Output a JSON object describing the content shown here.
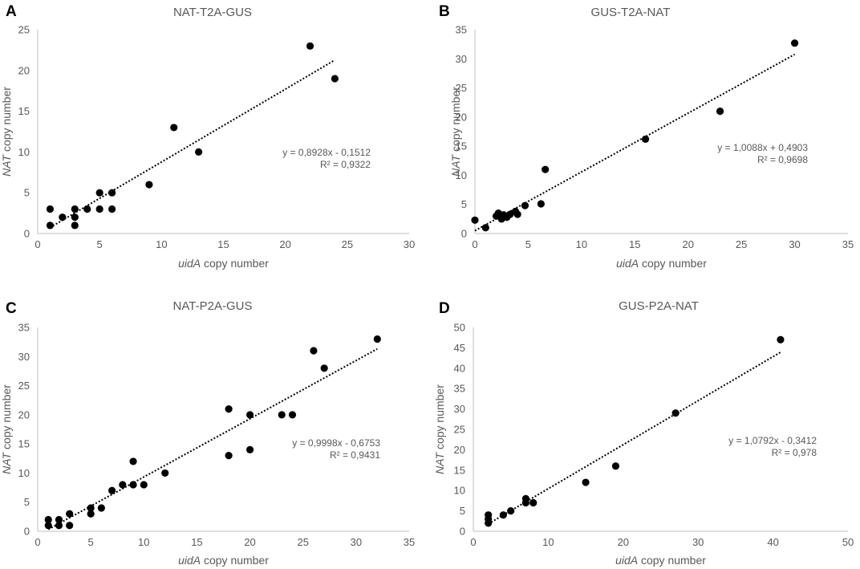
{
  "chart_data": [
    {
      "type": "scatter",
      "panel_label": "A",
      "title": "NAT-T2A-GUS",
      "xlabel_italic": "uidA",
      "xlabel_rest": " copy number",
      "ylabel_italic": "NAT",
      "ylabel_rest": " copy number",
      "xlim": [
        0,
        30
      ],
      "ylim": [
        0,
        25
      ],
      "xticks": [
        0,
        5,
        10,
        15,
        20,
        25,
        30
      ],
      "yticks": [
        0,
        5,
        10,
        15,
        20,
        25
      ],
      "points": [
        [
          1,
          3
        ],
        [
          1,
          1
        ],
        [
          2,
          2
        ],
        [
          3,
          3
        ],
        [
          3,
          2
        ],
        [
          3,
          1
        ],
        [
          4,
          3
        ],
        [
          5,
          5
        ],
        [
          5,
          3
        ],
        [
          6,
          5
        ],
        [
          6,
          3
        ],
        [
          9,
          6
        ],
        [
          11,
          13
        ],
        [
          13,
          10
        ],
        [
          22,
          23
        ],
        [
          24,
          19
        ]
      ],
      "trendline": {
        "slope": 0.8928,
        "intercept": -0.1512,
        "x_range": [
          1,
          24
        ]
      },
      "equation": "y = 0,8928x - 0,1512",
      "r2": "R² = 0,9322"
    },
    {
      "type": "scatter",
      "panel_label": "B",
      "title": "GUS-T2A-NAT",
      "xlabel_italic": "uidA",
      "xlabel_rest": " copy number",
      "ylabel_italic": "NAT",
      "ylabel_rest": " copy number",
      "xlim": [
        0,
        35
      ],
      "ylim": [
        0,
        35
      ],
      "xticks": [
        0,
        5,
        10,
        15,
        20,
        25,
        30,
        35
      ],
      "yticks": [
        0,
        5,
        10,
        15,
        20,
        25,
        30,
        35
      ],
      "points": [
        [
          0,
          2.3
        ],
        [
          1,
          1
        ],
        [
          2,
          3
        ],
        [
          2.2,
          3.5
        ],
        [
          2.5,
          2.5
        ],
        [
          2.7,
          3.2
        ],
        [
          3,
          2.8
        ],
        [
          3.3,
          3.3
        ],
        [
          3.8,
          3.8
        ],
        [
          4,
          3.3
        ],
        [
          4.7,
          4.8
        ],
        [
          6.2,
          5.1
        ],
        [
          6.6,
          11
        ],
        [
          16,
          16.2
        ],
        [
          23,
          21
        ],
        [
          30,
          32.7
        ]
      ],
      "trendline": {
        "slope": 1.0088,
        "intercept": 0.4903,
        "x_range": [
          0,
          30
        ]
      },
      "equation": "y = 1,0088x + 0,4903",
      "r2": "R² = 0,9698"
    },
    {
      "type": "scatter",
      "panel_label": "C",
      "title": "NAT-P2A-GUS",
      "xlabel_italic": "uidA",
      "xlabel_rest": " copy number",
      "ylabel_italic": "NAT",
      "ylabel_rest": " copy number",
      "xlim": [
        0,
        35
      ],
      "ylim": [
        0,
        35
      ],
      "xticks": [
        0,
        5,
        10,
        15,
        20,
        25,
        30,
        35
      ],
      "yticks": [
        0,
        5,
        10,
        15,
        20,
        25,
        30,
        35
      ],
      "points": [
        [
          1,
          2
        ],
        [
          1,
          1
        ],
        [
          2,
          2
        ],
        [
          2,
          1
        ],
        [
          3,
          3
        ],
        [
          3,
          1
        ],
        [
          5,
          4
        ],
        [
          5,
          3
        ],
        [
          6,
          4
        ],
        [
          7,
          7
        ],
        [
          8,
          8
        ],
        [
          9,
          12
        ],
        [
          9,
          8
        ],
        [
          10,
          8
        ],
        [
          12,
          10
        ],
        [
          18,
          21
        ],
        [
          18,
          13
        ],
        [
          20,
          20
        ],
        [
          20,
          14
        ],
        [
          23,
          20
        ],
        [
          24,
          20
        ],
        [
          26,
          31
        ],
        [
          27,
          28
        ],
        [
          32,
          33
        ]
      ],
      "trendline": {
        "slope": 0.9998,
        "intercept": -0.6753,
        "x_range": [
          1,
          32
        ]
      },
      "equation": "y = 0,9998x - 0,6753",
      "r2": "R² = 0,9431"
    },
    {
      "type": "scatter",
      "panel_label": "D",
      "title": "GUS-P2A-NAT",
      "xlabel_italic": "uidA",
      "xlabel_rest": " copy number",
      "ylabel_italic": "NAT",
      "ylabel_rest": " copy number",
      "xlim": [
        0,
        50
      ],
      "ylim": [
        0,
        50
      ],
      "xticks": [
        0,
        10,
        20,
        30,
        40,
        50
      ],
      "yticks": [
        0,
        5,
        10,
        15,
        20,
        25,
        30,
        35,
        40,
        45,
        50
      ],
      "points": [
        [
          2,
          4
        ],
        [
          2,
          3
        ],
        [
          2,
          2
        ],
        [
          4,
          4
        ],
        [
          5,
          5
        ],
        [
          7,
          8
        ],
        [
          7,
          7
        ],
        [
          8,
          7
        ],
        [
          15,
          12
        ],
        [
          19,
          16
        ],
        [
          27,
          29
        ],
        [
          41,
          47
        ]
      ],
      "trendline": {
        "slope": 1.0792,
        "intercept": -0.3412,
        "x_range": [
          2,
          41
        ]
      },
      "equation": "y = 1,0792x - 0,3412",
      "r2": "R² = 0,978"
    }
  ]
}
